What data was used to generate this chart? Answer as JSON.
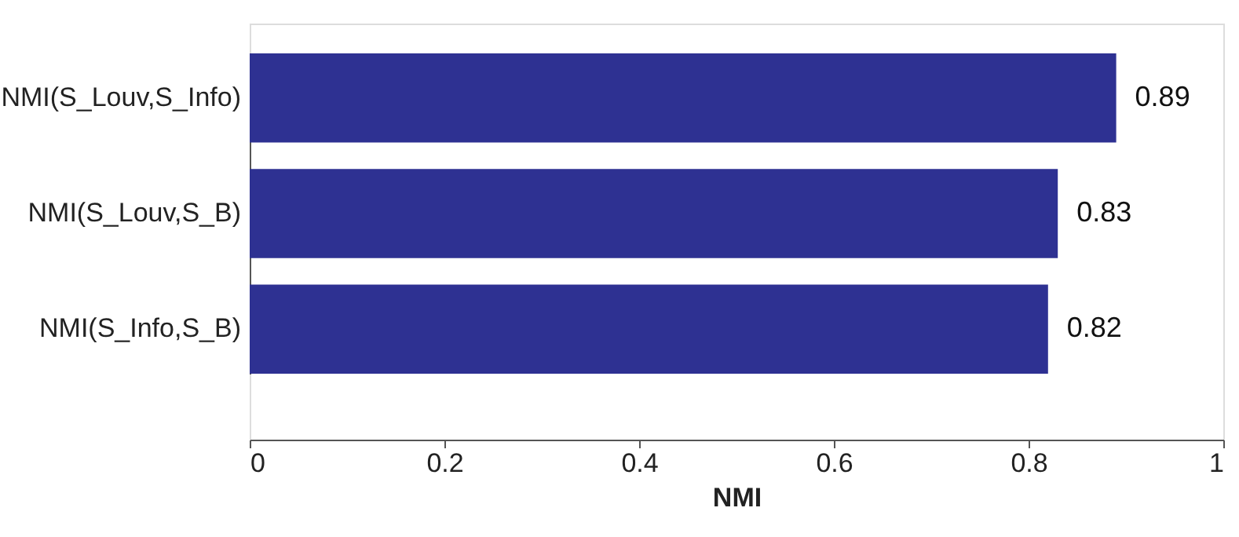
{
  "chart_data": {
    "type": "bar",
    "orientation": "horizontal",
    "xlabel": "NMI",
    "categories": [
      "NMI(S_Louv,S_Info)",
      "NMI(S_Louv,S_B)",
      "NMI(S_Info,S_B)"
    ],
    "values": [
      0.89,
      0.83,
      0.82
    ],
    "color": "#2e3192",
    "xlim": [
      0,
      1
    ],
    "xticks": [
      0,
      0.2,
      0.4,
      0.6,
      0.8,
      1
    ],
    "data_labels": true,
    "grid": false
  }
}
